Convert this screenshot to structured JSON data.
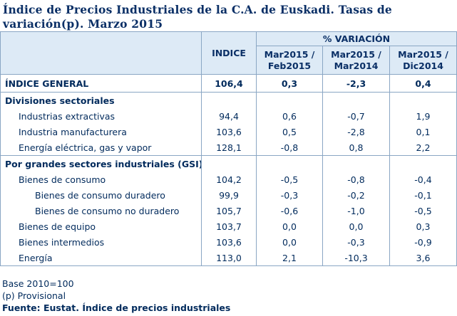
{
  "title": "Índice de Precios Industriales de la C.A. de Euskadi. Tasas de variación(p). Marzo 2015",
  "header": {
    "indice": "INDICE",
    "variacion": "% VARIACIÓN",
    "cols": [
      "Mar2015 / Feb2015",
      "Mar2015 / Mar2014",
      "Mar2015 / Dic2014"
    ]
  },
  "general": {
    "label": "ÍNDICE GENERAL",
    "indice": "106,4",
    "v1": "0,3",
    "v2": "-2,3",
    "v3": "0,4"
  },
  "sections": [
    {
      "title": "Divisiones sectoriales",
      "rows": [
        {
          "label": "Industrias extractivas",
          "indice": "94,4",
          "v1": "0,6",
          "v2": "-0,7",
          "v3": "1,9"
        },
        {
          "label": "Industria manufacturera",
          "indice": "103,6",
          "v1": "0,5",
          "v2": "-2,8",
          "v3": "0,1"
        },
        {
          "label": "Energía eléctrica, gas y vapor",
          "indice": "128,1",
          "v1": "-0,8",
          "v2": "0,8",
          "v3": "2,2"
        }
      ]
    },
    {
      "title": "Por grandes sectores industriales (GSI)",
      "rows": [
        {
          "label": "Bienes de consumo",
          "indice": "104,2",
          "v1": "-0,5",
          "v2": "-0,8",
          "v3": "-0,4"
        },
        {
          "label": "Bienes de consumo duradero",
          "indice": "99,9",
          "v1": "-0,3",
          "v2": "-0,2",
          "v3": "-0,1"
        },
        {
          "label": "Bienes de consumo no duradero",
          "indice": "105,7",
          "v1": "-0,6",
          "v2": "-1,0",
          "v3": "-0,5"
        },
        {
          "label": "Bienes de equipo",
          "indice": "103,7",
          "v1": "0,0",
          "v2": "0,0",
          "v3": "0,3"
        },
        {
          "label": "Bienes intermedios",
          "indice": "103,6",
          "v1": "0,0",
          "v2": "-0,3",
          "v3": "-0,9"
        },
        {
          "label": "Energía",
          "indice": "113,0",
          "v1": "2,1",
          "v2": "-10,3",
          "v3": "3,6"
        }
      ]
    }
  ],
  "footer": {
    "base": "Base 2010=100",
    "provisional": "(p) Provisional",
    "source": "Fuente: Eustat. Índice de precios industriales"
  }
}
